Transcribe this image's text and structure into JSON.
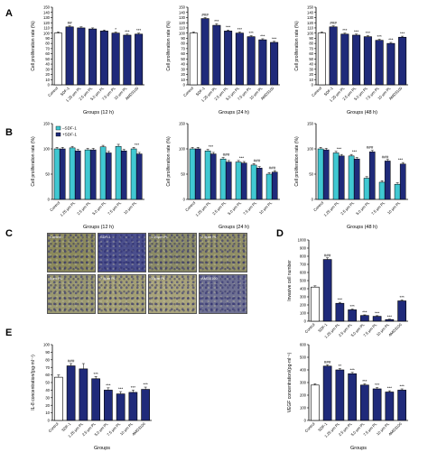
{
  "colors": {
    "control": "#ffffff",
    "primary": "#1f2a7a",
    "minus_sdf": "#40c8d2",
    "plus_sdf": "#1f2a7a",
    "axis": "#000000"
  },
  "panels": {
    "A": "A",
    "B": "B",
    "C": "C",
    "D": "D",
    "E": "E"
  },
  "micrographs": [
    {
      "label": "Control",
      "tint": "#8c8a5c"
    },
    {
      "label": "SDF-1",
      "tint": "#4b4f8c"
    },
    {
      "label": "1.25μm PL",
      "tint": "#8a8a66"
    },
    {
      "label": "2.5μm PL",
      "tint": "#908e66"
    },
    {
      "label": "5μm PL",
      "tint": "#9a9870"
    },
    {
      "label": "7.5μm PL",
      "tint": "#a39f74"
    },
    {
      "label": "10μm PL",
      "tint": "#a8a37a"
    },
    {
      "label": "AMD3100",
      "tint": "#6e7092"
    }
  ],
  "chart_data": [
    {
      "id": "A1",
      "type": "bar",
      "categories": [
        "Control",
        "SDF-1",
        "1.25 μm PL",
        "2.5 μm PL",
        "5.0 μm PL",
        "7.5 μm PL",
        "10 μm PL",
        "AMD3100"
      ],
      "values": [
        100,
        112,
        110,
        108,
        104,
        100,
        96,
        98
      ],
      "errors": [
        2,
        2,
        2,
        2,
        2,
        2,
        2,
        2
      ],
      "annotations": [
        "",
        "##",
        "",
        "",
        "",
        "*",
        "***",
        "***"
      ],
      "xlabel": "Groups (12 h)",
      "ylabel": "Cell proliferation rate (%)",
      "ylim": [
        0,
        150
      ],
      "yticks": [
        0,
        10,
        20,
        30,
        40,
        50,
        60,
        70,
        80,
        90,
        100,
        110,
        120,
        130,
        140,
        150
      ]
    },
    {
      "id": "A2",
      "type": "bar",
      "categories": [
        "Control",
        "SDF-1",
        "1.25 μm PL",
        "2.5 μm PL",
        "5.0 μm PL",
        "7.5 μm PL",
        "10 μm PL",
        "AMD3100"
      ],
      "values": [
        100,
        128,
        115,
        104,
        100,
        93,
        87,
        82
      ],
      "errors": [
        2,
        2,
        3,
        2,
        2,
        2,
        2,
        2
      ],
      "annotations": [
        "",
        "###",
        "***",
        "***",
        "***",
        "***",
        "***",
        "***"
      ],
      "xlabel": "Groups (24 h)",
      "ylabel": "Cell proliferation rate (%)",
      "ylim": [
        0,
        150
      ],
      "yticks": [
        0,
        10,
        20,
        30,
        40,
        50,
        60,
        70,
        80,
        90,
        100,
        110,
        120,
        130,
        140,
        150
      ]
    },
    {
      "id": "A3",
      "type": "bar",
      "categories": [
        "Control",
        "SDF-1",
        "1.25 μm PL",
        "2.5 μm PL",
        "5.0 μm PL",
        "7.5 μm PL",
        "10 μm PL",
        "AMD3100"
      ],
      "values": [
        100,
        112,
        98,
        96,
        93,
        86,
        80,
        92
      ],
      "errors": [
        2,
        2,
        2,
        2,
        2,
        2,
        2,
        2
      ],
      "annotations": [
        "",
        "###",
        "***",
        "***",
        "***",
        "***",
        "***",
        "***"
      ],
      "xlabel": "Groups (48 h)",
      "ylabel": "Cell proliferation rate (%)",
      "ylim": [
        0,
        150
      ],
      "yticks": [
        0,
        10,
        20,
        30,
        40,
        50,
        60,
        70,
        80,
        90,
        100,
        110,
        120,
        130,
        140,
        150
      ]
    },
    {
      "id": "B1",
      "type": "bar",
      "categories": [
        "Control",
        "1.25 μm PL",
        "2.5 μm PL",
        "5.0 μm PL",
        "7.5 μm PL",
        "10 μm PL"
      ],
      "series": [
        {
          "name": "–SDF-1",
          "values": [
            100,
            102,
            98,
            104,
            105,
            100
          ],
          "errors": [
            3,
            3,
            3,
            3,
            4,
            3
          ]
        },
        {
          "name": "+SDF-1",
          "values": [
            100,
            96,
            98,
            92,
            96,
            90
          ],
          "errors": [
            3,
            3,
            3,
            3,
            3,
            3
          ]
        }
      ],
      "annotations": [
        "",
        "",
        "",
        "",
        "",
        "***"
      ],
      "xlabel": "Groups (12 h)",
      "ylabel": "Cell proliferation rate (%)",
      "ylim": [
        0,
        150
      ],
      "yticks": [
        0,
        50,
        100,
        150
      ],
      "legend": "top-left"
    },
    {
      "id": "B2",
      "type": "bar",
      "categories": [
        "Control",
        "1.25 μm PL",
        "2.5 μm PL",
        "5.0 μm PL",
        "7.5 μm PL",
        "10 μm PL"
      ],
      "series": [
        {
          "name": "–SDF-1",
          "values": [
            100,
            96,
            80,
            74,
            68,
            50
          ],
          "errors": [
            3,
            3,
            3,
            3,
            3,
            3
          ]
        },
        {
          "name": "+SDF-1",
          "values": [
            100,
            90,
            74,
            72,
            62,
            54
          ],
          "errors": [
            3,
            3,
            3,
            3,
            3,
            3
          ]
        }
      ],
      "annotations": [
        "",
        "***",
        "###",
        "***",
        "###",
        "###"
      ],
      "xlabel": "Groups (24 h)",
      "ylabel": "Cell proliferation rate (%)",
      "ylim": [
        0,
        150
      ],
      "yticks": [
        0,
        50,
        100,
        150
      ]
    },
    {
      "id": "B3",
      "type": "bar",
      "categories": [
        "Control",
        "1.25 μm PL",
        "2.5 μm PL",
        "5.0 μm PL",
        "7.5 μm PL",
        "10 μm PL"
      ],
      "series": [
        {
          "name": "–SDF-1",
          "values": [
            100,
            92,
            86,
            42,
            34,
            30
          ],
          "errors": [
            3,
            3,
            3,
            3,
            3,
            3
          ]
        },
        {
          "name": "+SDF-1",
          "values": [
            98,
            86,
            80,
            94,
            76,
            70
          ],
          "errors": [
            3,
            3,
            3,
            3,
            3,
            3
          ]
        }
      ],
      "annotations": [
        "",
        "***",
        "***",
        "###",
        "###",
        "***"
      ],
      "xlabel": "Groups (48 h)",
      "ylabel": "Cell proliferation rate (%)",
      "ylim": [
        0,
        150
      ],
      "yticks": [
        0,
        50,
        100,
        150
      ]
    },
    {
      "id": "D",
      "type": "bar",
      "categories": [
        "Control",
        "SDF-1",
        "1.25 μm PL",
        "2.5 μm PL",
        "5.0 μm PL",
        "7.5 μm PL",
        "10 μm PL",
        "AMD3100"
      ],
      "values": [
        420,
        760,
        220,
        140,
        70,
        60,
        20,
        250
      ],
      "errors": [
        15,
        20,
        12,
        10,
        8,
        8,
        5,
        12
      ],
      "annotations": [
        "",
        "###",
        "***",
        "***",
        "***",
        "***",
        "***",
        "***"
      ],
      "xlabel": "",
      "ylabel": "Invasive cell number",
      "ylim": [
        0,
        1000
      ],
      "yticks": [
        0,
        100,
        200,
        300,
        400,
        500,
        600,
        700,
        800,
        900,
        1000
      ]
    },
    {
      "id": "E1",
      "type": "bar",
      "categories": [
        "Control",
        "SDF-1",
        "1.25 μm PL",
        "2.5 μm PL",
        "5.0 μm PL",
        "7.5 μm PL",
        "10 μm PL",
        "AMD3100"
      ],
      "values": [
        57,
        72,
        68,
        55,
        40,
        35,
        37,
        41
      ],
      "errors": [
        3,
        3,
        7,
        3,
        3,
        3,
        3,
        3
      ],
      "annotations": [
        "",
        "###",
        "",
        "***",
        "***",
        "***",
        "***",
        "***"
      ],
      "xlabel": "Groups",
      "ylabel": "IL-8 concentration/(pg·ml⁻¹)",
      "ylim": [
        0,
        100
      ],
      "yticks": [
        0,
        10,
        20,
        30,
        40,
        50,
        60,
        70,
        80,
        90,
        100
      ]
    },
    {
      "id": "E2",
      "type": "bar",
      "categories": [
        "Control",
        "SDF-1",
        "1.25 μm PL",
        "2.5 μm PL",
        "5.0 μm PL",
        "7.5 μm PL",
        "10 μm PL",
        "AMD3100"
      ],
      "values": [
        280,
        430,
        400,
        370,
        280,
        250,
        225,
        240
      ],
      "errors": [
        10,
        10,
        10,
        10,
        10,
        10,
        10,
        10
      ],
      "annotations": [
        "",
        "###",
        "**",
        "***",
        "***",
        "***",
        "***",
        "***"
      ],
      "xlabel": "Groups",
      "ylabel": "VEGF concentration/(pg·ml⁻¹)",
      "ylim": [
        0,
        600
      ],
      "yticks": [
        0,
        100,
        200,
        300,
        400,
        500,
        600
      ]
    }
  ]
}
